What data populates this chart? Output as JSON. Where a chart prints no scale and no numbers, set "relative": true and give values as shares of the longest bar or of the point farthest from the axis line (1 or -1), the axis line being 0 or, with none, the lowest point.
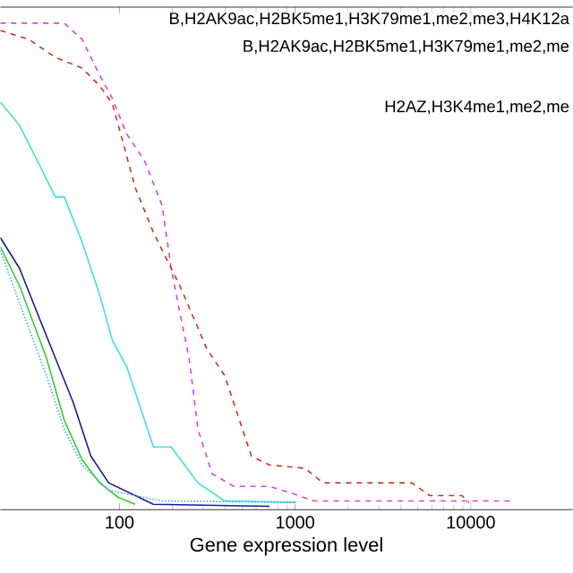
{
  "chart_data": {
    "type": "line",
    "xlabel": "Gene expression level",
    "log": "x",
    "relative": true,
    "xlim": [
      21,
      38000
    ],
    "xticks": [
      100,
      1000,
      10000
    ],
    "annotations": [
      "B,H2AK9ac,H2BK5me1,H3K79me1,me2,me3,H4K12a",
      "B,H2AK9ac,H2BK5me1,H3K79me1,me2,me",
      "H2AZ,H3K4me1,me2,me"
    ],
    "series": [
      {
        "color": "#e040e0",
        "line_style": "dashed",
        "x": [
          21,
          48.5,
          61.2,
          77.3,
          91,
          110,
          139,
          175,
          197,
          221,
          249,
          280,
          337,
          447,
          713,
          900,
          1280,
          2900,
          16700
        ],
        "values": [
          1.0,
          1.0,
          0.967,
          0.893,
          0.846,
          0.772,
          0.717,
          0.625,
          0.496,
          0.404,
          0.3125,
          0.165,
          0.074,
          0.048,
          0.048,
          0.037,
          0.018,
          0.018,
          0.018
        ]
      },
      {
        "color": "#d03020",
        "line_style": "dashed",
        "x": [
          21,
          30.4,
          43.1,
          61.2,
          77.3,
          91,
          105,
          123,
          156,
          221,
          314,
          397,
          564,
          713,
          1140,
          1440,
          4620,
          5840,
          8900,
          9770
        ],
        "values": [
          0.985,
          0.967,
          0.93,
          0.908,
          0.871,
          0.835,
          0.754,
          0.662,
          0.57,
          0.46,
          0.331,
          0.276,
          0.11,
          0.092,
          0.085,
          0.055,
          0.055,
          0.029,
          0.029,
          0.015
        ]
      },
      {
        "color": "#40e0e0",
        "line_style": "solid",
        "x": [
          21,
          27,
          34.1,
          43.1,
          48.5,
          61.2,
          77.3,
          91,
          110,
          139,
          156,
          197,
          280,
          397,
          1010
        ],
        "values": [
          0.838,
          0.79,
          0.717,
          0.643,
          0.643,
          0.551,
          0.441,
          0.349,
          0.294,
          0.184,
          0.129,
          0.129,
          0.055,
          0.018,
          0.015
        ]
      },
      {
        "color": "#1a1a9a",
        "line_style": "solid",
        "x": [
          21,
          27,
          34.1,
          43.1,
          54.5,
          68.8,
          86.9,
          123,
          156,
          713
        ],
        "values": [
          0.559,
          0.496,
          0.404,
          0.3125,
          0.221,
          0.11,
          0.055,
          0.029,
          0.011,
          0.007
        ]
      },
      {
        "color": "#30d030",
        "line_style": "solid",
        "x": [
          21,
          27,
          38.4,
          48.5,
          61.2,
          77.3,
          97.7,
          123
        ],
        "values": [
          0.54,
          0.46,
          0.3125,
          0.184,
          0.103,
          0.055,
          0.026,
          0.011
        ]
      },
      {
        "color": "#40b0e0",
        "line_style": "dotted",
        "x": [
          21,
          28.3,
          38.4,
          48.5,
          61.2,
          86.9,
          175,
          1010
        ],
        "values": [
          0.533,
          0.404,
          0.276,
          0.165,
          0.092,
          0.04,
          0.018,
          0.015
        ]
      }
    ]
  }
}
